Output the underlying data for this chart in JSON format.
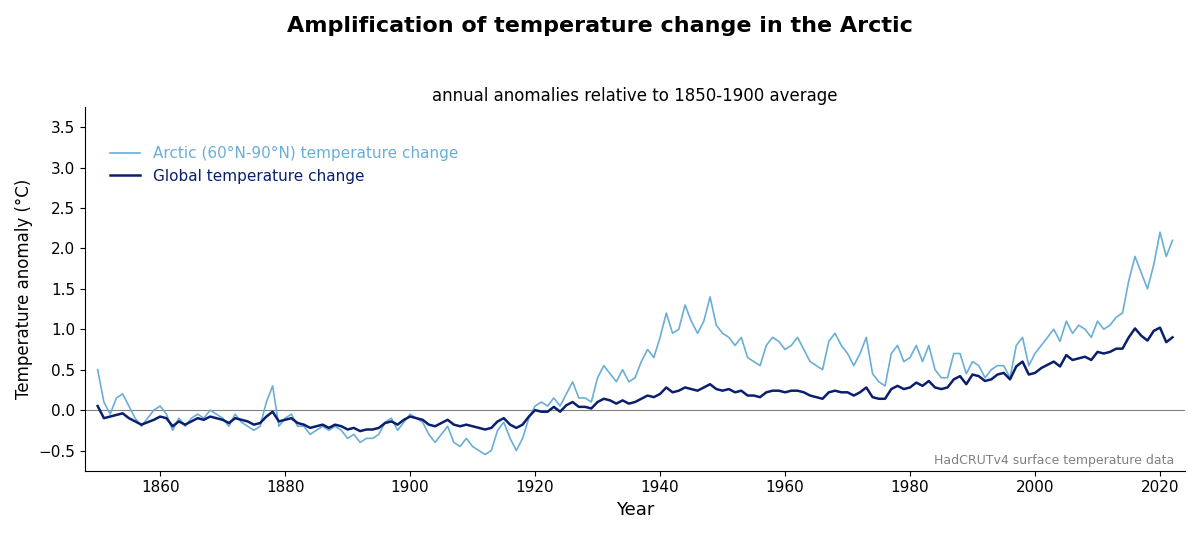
{
  "title": "Amplification of temperature change in the Arctic",
  "subtitle": "annual anomalies relative to 1850-1900 average",
  "xlabel": "Year",
  "ylabel": "Temperature anomaly (°C)",
  "arctic_label": "Arctic (60°N-90°N) temperature change",
  "global_label": "Global temperature change",
  "annotation": "HadCRUTv4 surface temperature data",
  "arctic_color": "#6aaed6",
  "global_color": "#0a1f6e",
  "ylim": [
    -0.75,
    3.75
  ],
  "xlim": [
    1848,
    2024
  ],
  "yticks": [
    -0.5,
    0,
    0.5,
    1.0,
    1.5,
    2.0,
    2.5,
    3.0,
    3.5
  ],
  "xticks": [
    1860,
    1880,
    1900,
    1920,
    1940,
    1960,
    1980,
    2000,
    2020
  ],
  "years": [
    1850,
    1851,
    1852,
    1853,
    1854,
    1855,
    1856,
    1857,
    1858,
    1859,
    1860,
    1861,
    1862,
    1863,
    1864,
    1865,
    1866,
    1867,
    1868,
    1869,
    1870,
    1871,
    1872,
    1873,
    1874,
    1875,
    1876,
    1877,
    1878,
    1879,
    1880,
    1881,
    1882,
    1883,
    1884,
    1885,
    1886,
    1887,
    1888,
    1889,
    1890,
    1891,
    1892,
    1893,
    1894,
    1895,
    1896,
    1897,
    1898,
    1899,
    1900,
    1901,
    1902,
    1903,
    1904,
    1905,
    1906,
    1907,
    1908,
    1909,
    1910,
    1911,
    1912,
    1913,
    1914,
    1915,
    1916,
    1917,
    1918,
    1919,
    1920,
    1921,
    1922,
    1923,
    1924,
    1925,
    1926,
    1927,
    1928,
    1929,
    1930,
    1931,
    1932,
    1933,
    1934,
    1935,
    1936,
    1937,
    1938,
    1939,
    1940,
    1941,
    1942,
    1943,
    1944,
    1945,
    1946,
    1947,
    1948,
    1949,
    1950,
    1951,
    1952,
    1953,
    1954,
    1955,
    1956,
    1957,
    1958,
    1959,
    1960,
    1961,
    1962,
    1963,
    1964,
    1965,
    1966,
    1967,
    1968,
    1969,
    1970,
    1971,
    1972,
    1973,
    1974,
    1975,
    1976,
    1977,
    1978,
    1979,
    1980,
    1981,
    1982,
    1983,
    1984,
    1985,
    1986,
    1987,
    1988,
    1989,
    1990,
    1991,
    1992,
    1993,
    1994,
    1995,
    1996,
    1997,
    1998,
    1999,
    2000,
    2001,
    2002,
    2003,
    2004,
    2005,
    2006,
    2007,
    2008,
    2009,
    2010,
    2011,
    2012,
    2013,
    2014,
    2015,
    2016,
    2017,
    2018,
    2019,
    2020,
    2021,
    2022
  ],
  "global": [
    0.05,
    -0.1,
    -0.08,
    -0.06,
    -0.04,
    -0.1,
    -0.14,
    -0.18,
    -0.15,
    -0.12,
    -0.08,
    -0.1,
    -0.2,
    -0.14,
    -0.18,
    -0.14,
    -0.1,
    -0.12,
    -0.08,
    -0.1,
    -0.12,
    -0.16,
    -0.1,
    -0.12,
    -0.14,
    -0.18,
    -0.16,
    -0.08,
    -0.02,
    -0.14,
    -0.12,
    -0.1,
    -0.16,
    -0.18,
    -0.22,
    -0.2,
    -0.18,
    -0.22,
    -0.18,
    -0.2,
    -0.24,
    -0.22,
    -0.26,
    -0.24,
    -0.24,
    -0.22,
    -0.16,
    -0.14,
    -0.18,
    -0.12,
    -0.08,
    -0.1,
    -0.12,
    -0.18,
    -0.2,
    -0.16,
    -0.12,
    -0.18,
    -0.2,
    -0.18,
    -0.2,
    -0.22,
    -0.24,
    -0.22,
    -0.14,
    -0.1,
    -0.18,
    -0.22,
    -0.18,
    -0.08,
    0.0,
    -0.02,
    -0.02,
    0.04,
    -0.02,
    0.06,
    0.1,
    0.04,
    0.04,
    0.02,
    0.1,
    0.14,
    0.12,
    0.08,
    0.12,
    0.08,
    0.1,
    0.14,
    0.18,
    0.16,
    0.2,
    0.28,
    0.22,
    0.24,
    0.28,
    0.26,
    0.24,
    0.28,
    0.32,
    0.26,
    0.24,
    0.26,
    0.22,
    0.24,
    0.18,
    0.18,
    0.16,
    0.22,
    0.24,
    0.24,
    0.22,
    0.24,
    0.24,
    0.22,
    0.18,
    0.16,
    0.14,
    0.22,
    0.24,
    0.22,
    0.22,
    0.18,
    0.22,
    0.28,
    0.16,
    0.14,
    0.14,
    0.26,
    0.3,
    0.26,
    0.28,
    0.34,
    0.3,
    0.36,
    0.28,
    0.26,
    0.28,
    0.38,
    0.42,
    0.32,
    0.44,
    0.42,
    0.36,
    0.38,
    0.44,
    0.46,
    0.38,
    0.54,
    0.6,
    0.44,
    0.46,
    0.52,
    0.56,
    0.6,
    0.54,
    0.68,
    0.62,
    0.64,
    0.66,
    0.62,
    0.72,
    0.7,
    0.72,
    0.76,
    0.76,
    0.9,
    1.01,
    0.92,
    0.86,
    0.98,
    1.02,
    0.84,
    0.9
  ],
  "arctic": [
    0.5,
    0.1,
    -0.05,
    0.15,
    0.2,
    0.05,
    -0.1,
    -0.2,
    -0.1,
    0.0,
    0.05,
    -0.05,
    -0.25,
    -0.1,
    -0.2,
    -0.1,
    -0.05,
    -0.1,
    0.0,
    -0.05,
    -0.1,
    -0.2,
    -0.05,
    -0.15,
    -0.2,
    -0.25,
    -0.2,
    0.1,
    0.3,
    -0.2,
    -0.1,
    -0.05,
    -0.2,
    -0.2,
    -0.3,
    -0.25,
    -0.2,
    -0.25,
    -0.2,
    -0.25,
    -0.35,
    -0.3,
    -0.4,
    -0.35,
    -0.35,
    -0.3,
    -0.15,
    -0.1,
    -0.25,
    -0.15,
    -0.05,
    -0.1,
    -0.15,
    -0.3,
    -0.4,
    -0.3,
    -0.2,
    -0.4,
    -0.45,
    -0.35,
    -0.45,
    -0.5,
    -0.55,
    -0.5,
    -0.25,
    -0.15,
    -0.35,
    -0.5,
    -0.35,
    -0.1,
    0.05,
    0.1,
    0.05,
    0.15,
    0.05,
    0.2,
    0.35,
    0.15,
    0.15,
    0.1,
    0.4,
    0.55,
    0.45,
    0.35,
    0.5,
    0.35,
    0.4,
    0.6,
    0.75,
    0.65,
    0.9,
    1.2,
    0.95,
    1.0,
    1.3,
    1.1,
    0.95,
    1.1,
    1.4,
    1.05,
    0.95,
    0.9,
    0.8,
    0.9,
    0.65,
    0.6,
    0.55,
    0.8,
    0.9,
    0.85,
    0.75,
    0.8,
    0.9,
    0.75,
    0.6,
    0.55,
    0.5,
    0.85,
    0.95,
    0.8,
    0.7,
    0.55,
    0.7,
    0.9,
    0.45,
    0.35,
    0.3,
    0.7,
    0.8,
    0.6,
    0.65,
    0.8,
    0.6,
    0.8,
    0.5,
    0.4,
    0.4,
    0.7,
    0.7,
    0.45,
    0.6,
    0.55,
    0.4,
    0.5,
    0.55,
    0.55,
    0.4,
    0.8,
    0.9,
    0.55,
    0.7,
    0.8,
    0.9,
    1.0,
    0.85,
    1.1,
    0.95,
    1.05,
    1.0,
    0.9,
    1.1,
    1.0,
    1.05,
    1.15,
    1.2,
    1.6,
    1.9,
    1.7,
    1.5,
    1.8,
    2.2,
    1.9,
    2.1
  ]
}
